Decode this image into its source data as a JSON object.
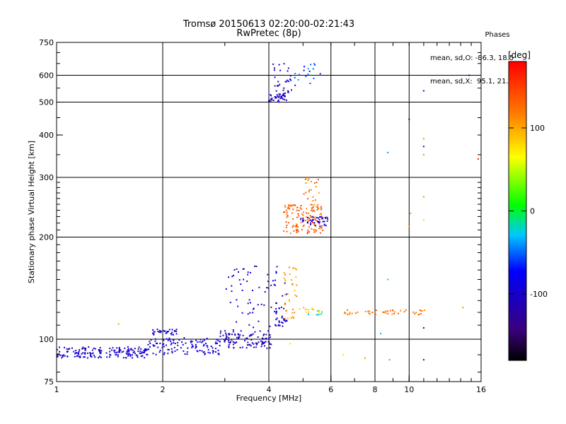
{
  "header": {
    "title_line1": "Tromsø 20150613 02:20:00-02:21:43",
    "title_line2": "RwPretec (8p)"
  },
  "phase_box": {
    "heading": "Phases",
    "line_o": "mean, sd,O: -86.3, 18.5",
    "line_x": "mean, sd,X:  95.1, 21.7"
  },
  "colorbar": {
    "unit": "[deg]",
    "range": [
      -180,
      180
    ],
    "ticks": [
      {
        "v": 100,
        "label": "100"
      },
      {
        "v": 0,
        "label": "0"
      },
      {
        "v": -100,
        "label": "-100"
      }
    ],
    "stops": [
      "#000000",
      "#3a007a",
      "#0000ff",
      "#00c8ff",
      "#00ff00",
      "#ffff00",
      "#ff8000",
      "#ff0000"
    ]
  },
  "chart_data": {
    "type": "scatter",
    "title": "Tromsø 20150613 02:20:00-02:21:43",
    "xlabel": "Frequency [MHz]",
    "ylabel": "Stationary phase Virtual Height [km]",
    "xscale": "log",
    "yscale": "log",
    "xlim": [
      1,
      16
    ],
    "ylim": [
      75,
      750
    ],
    "x_ticks": [
      1,
      2,
      4,
      6,
      8,
      10,
      16
    ],
    "y_ticks": [
      75,
      100,
      200,
      300,
      400,
      500,
      600,
      750
    ],
    "x_gridlines": [
      2,
      4,
      6,
      8,
      10
    ],
    "y_gridlines": [
      100,
      200,
      300,
      500,
      600
    ],
    "color_key": "phase [deg]",
    "clusters": [
      {
        "x_range": [
          1.0,
          1.8
        ],
        "y_range": [
          88,
          95
        ],
        "phase": -100,
        "count": 170
      },
      {
        "x_range": [
          1.8,
          3.0
        ],
        "y_range": [
          90,
          101
        ],
        "phase": -95,
        "count": 120
      },
      {
        "x_range": [
          1.85,
          2.2
        ],
        "y_range": [
          103,
          107
        ],
        "phase": -95,
        "count": 30
      },
      {
        "x_range": [
          2.9,
          3.2
        ],
        "y_range": [
          101,
          106
        ],
        "phase": -115,
        "count": 12
      },
      {
        "x_range": [
          3.0,
          4.1
        ],
        "y_range": [
          94,
          104
        ],
        "phase": -110,
        "count": 90
      },
      {
        "x_range": [
          3.0,
          4.5
        ],
        "y_range": [
          105,
          165
        ],
        "phase": -105,
        "count": 70
      },
      {
        "x_range": [
          4.15,
          4.5
        ],
        "y_range": [
          108,
          125
        ],
        "phase": -100,
        "count": 30
      },
      {
        "x_range": [
          4.4,
          4.8
        ],
        "y_range": [
          115,
          165
        ],
        "phase": 110,
        "count": 35
      },
      {
        "x_range": [
          4.8,
          5.6
        ],
        "y_range": [
          118,
          124
        ],
        "phase": 90,
        "count": 15
      },
      {
        "x_range": [
          5.1,
          5.7
        ],
        "y_range": [
          118,
          122
        ],
        "phase": -30,
        "count": 6
      },
      {
        "x_range": [
          6.5,
          11.5
        ],
        "y_range": [
          118,
          122
        ],
        "phase": 120,
        "count": 45
      },
      {
        "x_range": [
          4.0,
          4.5
        ],
        "y_range": [
          500,
          530
        ],
        "phase": -105,
        "count": 40
      },
      {
        "x_range": [
          4.1,
          4.7
        ],
        "y_range": [
          530,
          650
        ],
        "phase": -105,
        "count": 30
      },
      {
        "x_range": [
          4.7,
          5.6
        ],
        "y_range": [
          560,
          650
        ],
        "phase": -60,
        "count": 18
      },
      {
        "x_range": [
          4.4,
          5.7
        ],
        "y_range": [
          205,
          250
        ],
        "phase": 130,
        "count": 130
      },
      {
        "x_range": [
          4.9,
          5.9
        ],
        "y_range": [
          215,
          230
        ],
        "phase": -100,
        "count": 40
      },
      {
        "x_range": [
          5.0,
          5.6
        ],
        "y_range": [
          255,
          300
        ],
        "phase": 120,
        "count": 20
      }
    ],
    "points": [
      {
        "x": 11,
        "y": 540,
        "phase": -105
      },
      {
        "x": 14.8,
        "y": 600,
        "phase": -100
      },
      {
        "x": 10.0,
        "y": 445,
        "phase": -105
      },
      {
        "x": 8.7,
        "y": 355,
        "phase": -40
      },
      {
        "x": 11.0,
        "y": 390,
        "phase": 110
      },
      {
        "x": 11.0,
        "y": 350,
        "phase": 110
      },
      {
        "x": 11.0,
        "y": 370,
        "phase": -105
      },
      {
        "x": 15.7,
        "y": 340,
        "phase": 170
      },
      {
        "x": 11.0,
        "y": 263,
        "phase": 110
      },
      {
        "x": 10.1,
        "y": 235,
        "phase": 110
      },
      {
        "x": 10.0,
        "y": 215,
        "phase": 110
      },
      {
        "x": 11.0,
        "y": 225,
        "phase": 80
      },
      {
        "x": 8.7,
        "y": 150,
        "phase": -30
      },
      {
        "x": 14.2,
        "y": 124,
        "phase": 110
      },
      {
        "x": 11.0,
        "y": 108,
        "phase": -105
      },
      {
        "x": 8.3,
        "y": 104,
        "phase": -30
      },
      {
        "x": 6.5,
        "y": 90,
        "phase": 50
      },
      {
        "x": 7.5,
        "y": 88,
        "phase": 110
      },
      {
        "x": 8.8,
        "y": 87,
        "phase": -30
      },
      {
        "x": 11.0,
        "y": 87,
        "phase": -100
      },
      {
        "x": 1.5,
        "y": 111,
        "phase": 100
      },
      {
        "x": 4.6,
        "y": 97,
        "phase": 80
      }
    ]
  }
}
